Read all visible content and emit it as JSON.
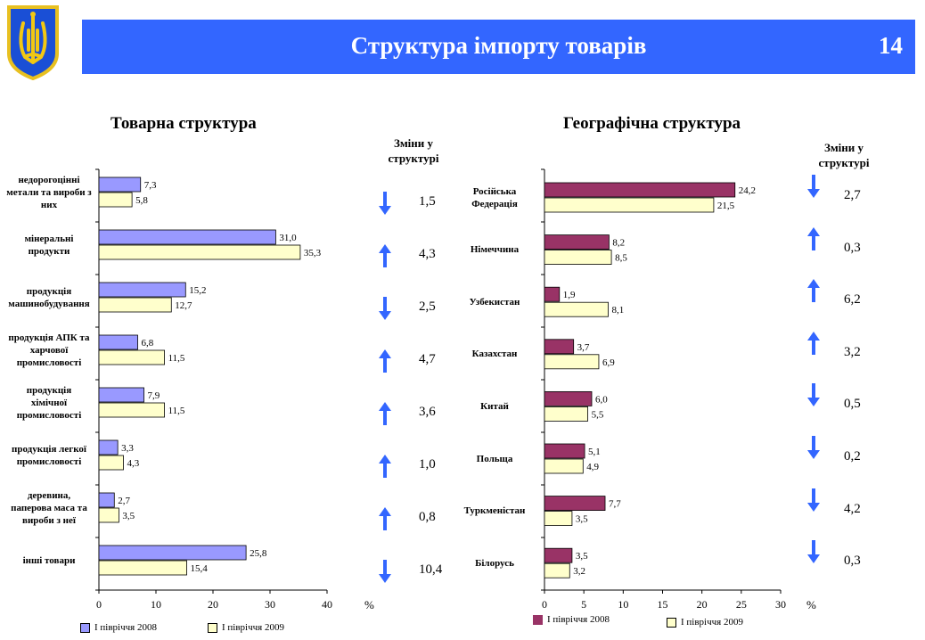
{
  "header": {
    "title": "Структура імпорту товарів",
    "page_number": "14"
  },
  "colors": {
    "header_blue": "#3366ff",
    "left_2008": "#9999ff",
    "both_2009": "#ffffcc",
    "right_2008": "#993366",
    "arrow_blue": "#3366ff"
  },
  "left": {
    "title": "Товарна структура",
    "changes_header": [
      "Зміни у",
      "структурі"
    ],
    "unit": "%",
    "legend": [
      "І півріччя 2008",
      "І півріччя 2009"
    ]
  },
  "right": {
    "title": "Географічна структура",
    "changes_header": [
      "Зміни у",
      "структурі"
    ],
    "unit": "%",
    "legend": [
      "І півріччя 2008",
      "І півріччя 2009"
    ]
  },
  "chart_data": [
    {
      "type": "bar",
      "orientation": "horizontal",
      "title": "Товарна структура",
      "categories": [
        [
          "недорогоцінні",
          "метали та вироби з",
          "них"
        ],
        [
          "мінеральні",
          "продукти"
        ],
        [
          "продукція",
          "машинобудування"
        ],
        [
          "продукція АПК та",
          "харчової",
          "промисловості"
        ],
        [
          "продукція",
          "хімічної",
          "промисловості"
        ],
        [
          "продукція легкої",
          "промисловості"
        ],
        [
          "деревина,",
          "паперова маса та",
          "вироби з неї"
        ],
        [
          "інші товари"
        ]
      ],
      "series": [
        {
          "name": "І півріччя 2008",
          "values": [
            7.3,
            31.0,
            15.2,
            6.8,
            7.9,
            3.3,
            2.7,
            25.8
          ],
          "labels": [
            "7,3",
            "31,0",
            "15,2",
            "6,8",
            "7,9",
            "3,3",
            "2,7",
            "25,8"
          ]
        },
        {
          "name": "І півріччя 2009",
          "values": [
            5.8,
            35.3,
            12.7,
            11.5,
            11.5,
            4.3,
            3.5,
            15.4
          ],
          "labels": [
            "5,8",
            "35,3",
            "12,7",
            "11,5",
            "11,5",
            "4,3",
            "3,5",
            "15,4"
          ]
        }
      ],
      "xlim": [
        0,
        40
      ],
      "ticks": [
        "0",
        "10",
        "20",
        "30",
        "40"
      ],
      "tick_values": [
        0,
        10,
        20,
        30,
        40
      ],
      "changes": [
        {
          "direction": "down",
          "value": "1,5"
        },
        {
          "direction": "up",
          "value": "4,3"
        },
        {
          "direction": "down",
          "value": "2,5"
        },
        {
          "direction": "up",
          "value": "4,7"
        },
        {
          "direction": "up",
          "value": "3,6"
        },
        {
          "direction": "up",
          "value": "1,0"
        },
        {
          "direction": "up",
          "value": "0,8"
        },
        {
          "direction": "down",
          "value": "10,4"
        }
      ]
    },
    {
      "type": "bar",
      "orientation": "horizontal",
      "title": "Географічна структура",
      "categories": [
        [
          "Російська",
          "Федерація"
        ],
        [
          "Німеччина"
        ],
        [
          "Узбекистан"
        ],
        [
          "Казахстан"
        ],
        [
          "Китай"
        ],
        [
          "Польща"
        ],
        [
          "Туркменістан"
        ],
        [
          "Білорусь"
        ]
      ],
      "series": [
        {
          "name": "І півріччя 2008",
          "values": [
            24.2,
            8.2,
            1.9,
            3.7,
            6.0,
            5.1,
            7.7,
            3.5
          ],
          "labels": [
            "24,2",
            "8,2",
            "1,9",
            "3,7",
            "6,0",
            "5,1",
            "7,7",
            "3,5"
          ]
        },
        {
          "name": "І півріччя 2009",
          "values": [
            21.5,
            8.5,
            8.1,
            6.9,
            5.5,
            4.9,
            3.5,
            3.2
          ],
          "labels": [
            "21,5",
            "8,5",
            "8,1",
            "6,9",
            "5,5",
            "4,9",
            "3,5",
            "3,2"
          ]
        }
      ],
      "xlim": [
        0,
        30
      ],
      "ticks": [
        "0",
        "5",
        "10",
        "15",
        "20",
        "25",
        "30"
      ],
      "tick_values": [
        0,
        5,
        10,
        15,
        20,
        25,
        30
      ],
      "changes": [
        {
          "direction": "down",
          "value": "2,7"
        },
        {
          "direction": "up",
          "value": "0,3"
        },
        {
          "direction": "up",
          "value": "6,2"
        },
        {
          "direction": "up",
          "value": "3,2"
        },
        {
          "direction": "down",
          "value": "0,5"
        },
        {
          "direction": "down",
          "value": "0,2"
        },
        {
          "direction": "down",
          "value": "4,2"
        },
        {
          "direction": "down",
          "value": "0,3"
        }
      ]
    }
  ]
}
